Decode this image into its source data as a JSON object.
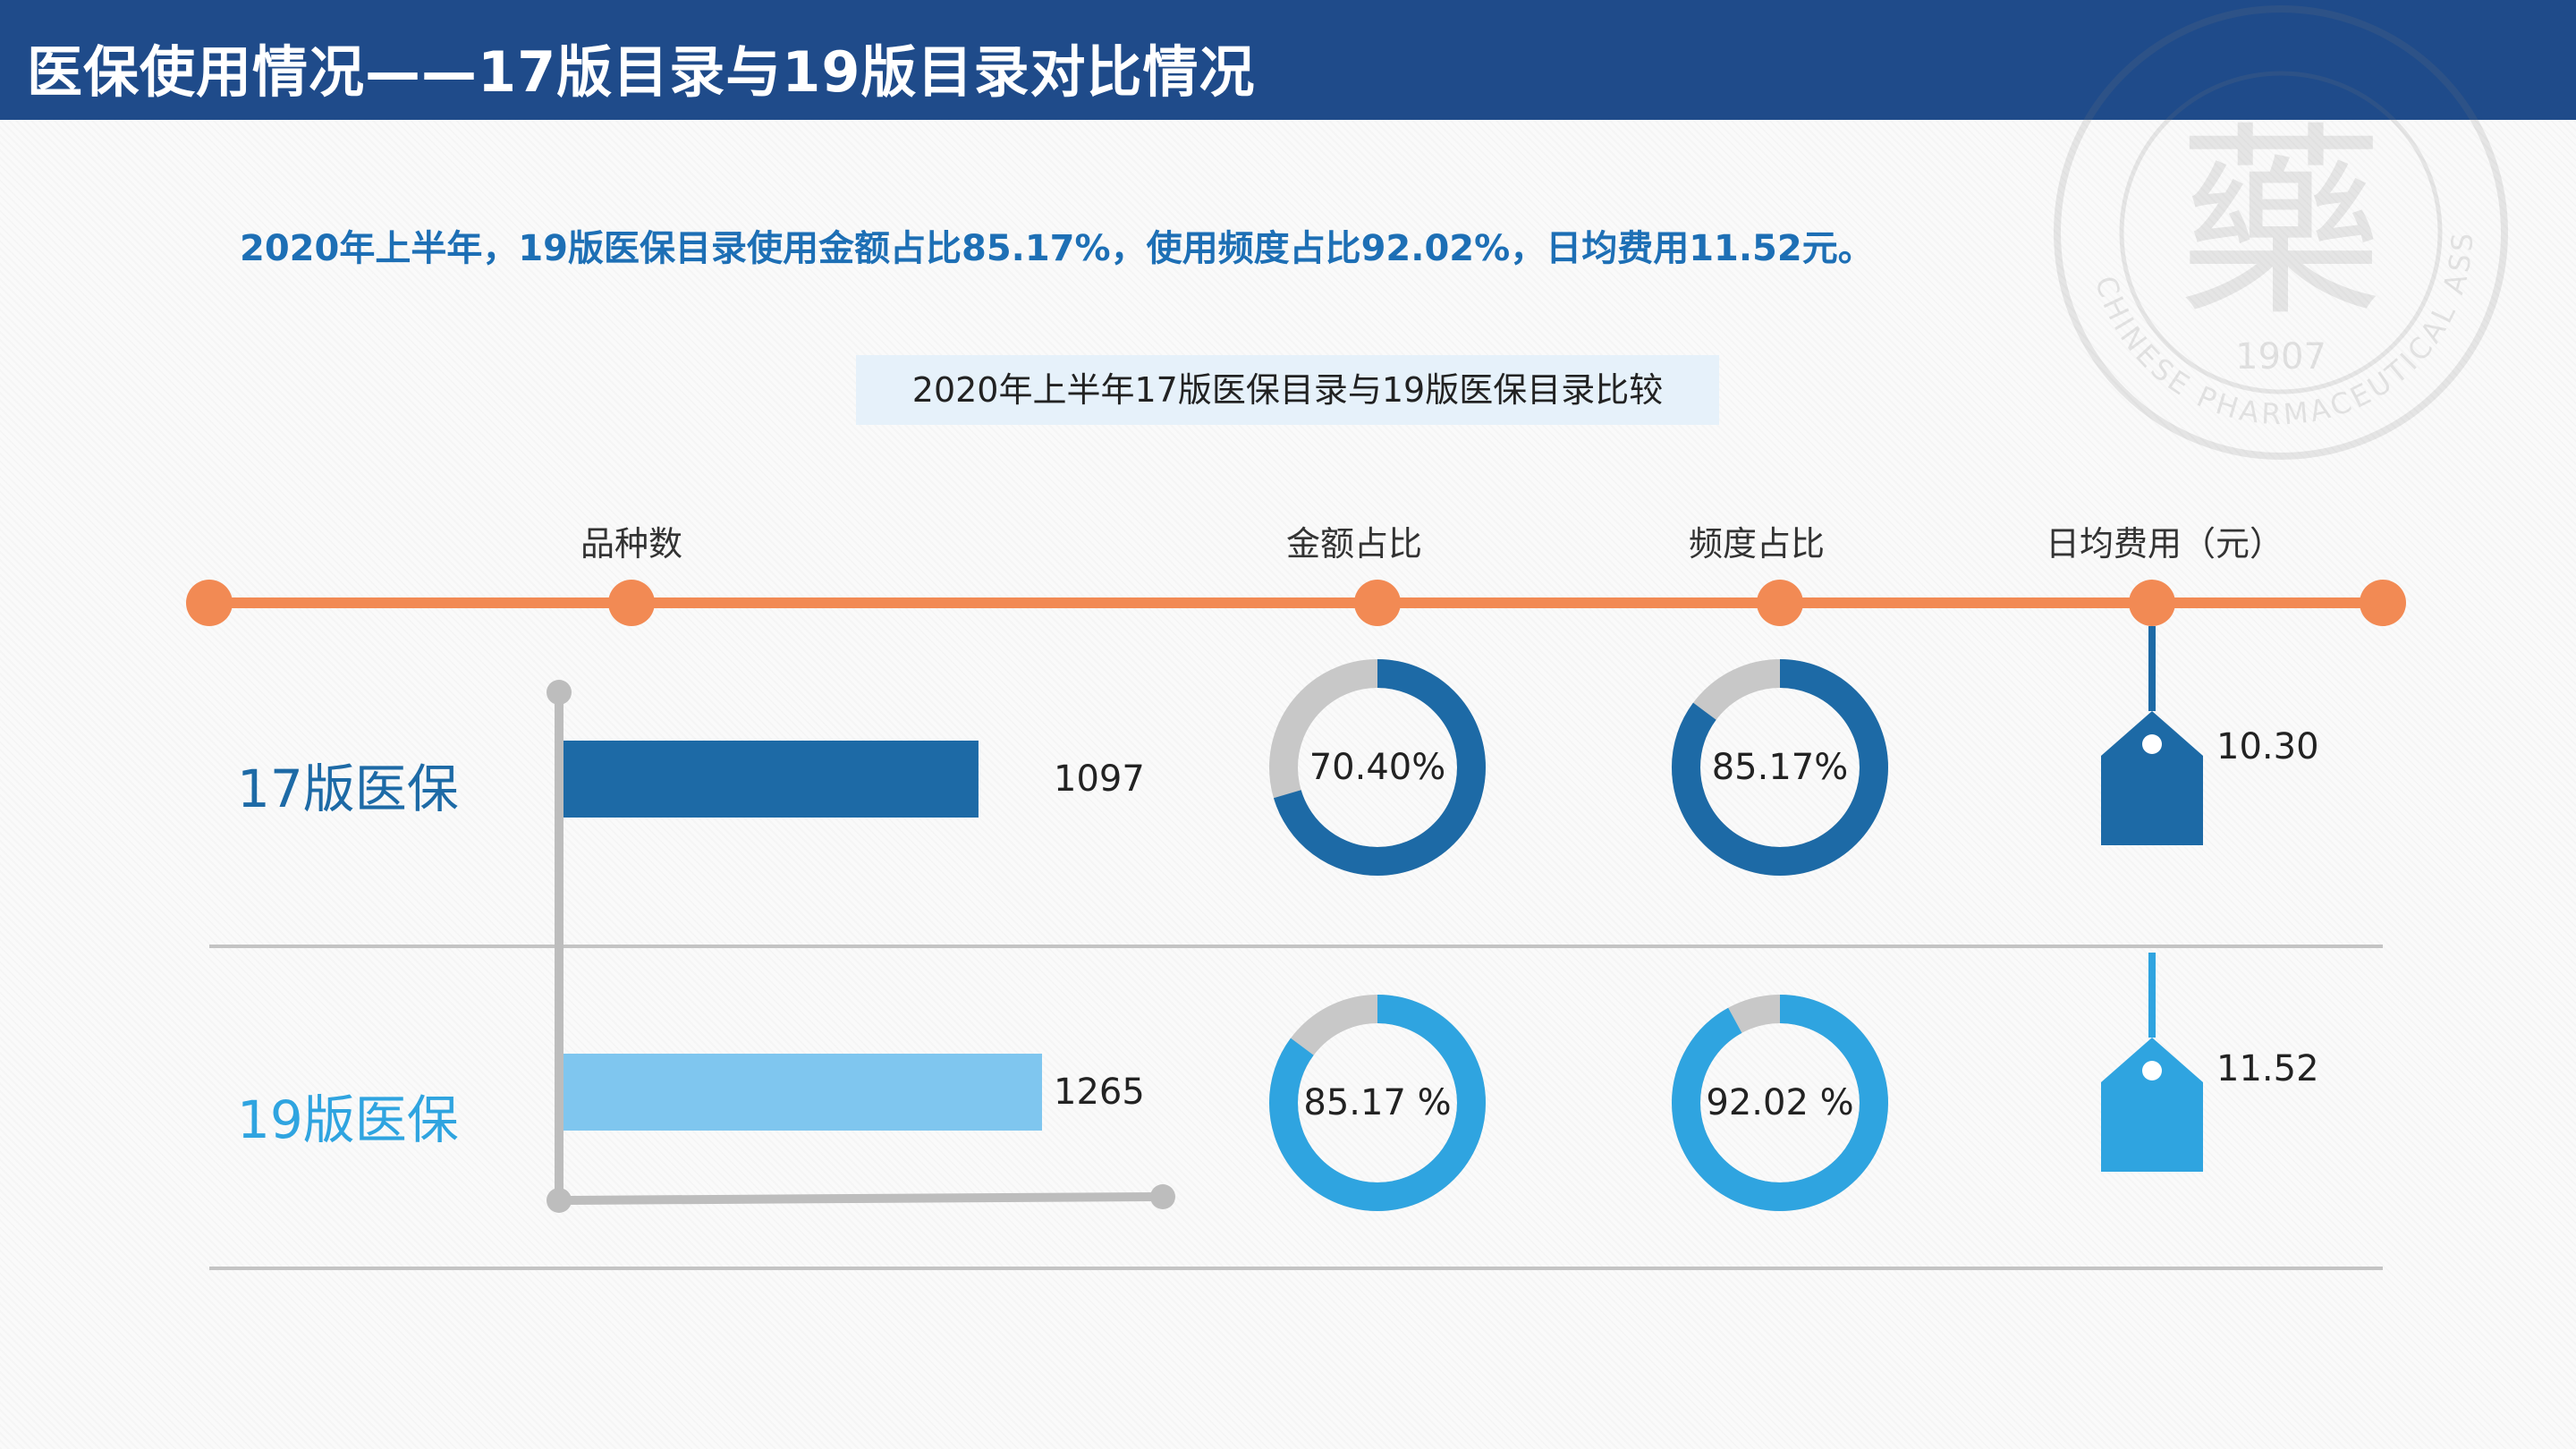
{
  "header": {
    "title": "医保使用情况——17版目录与19版目录对比情况"
  },
  "summary": "2020年上半年，19版医保目录使用金额占比85.17%，使用频度占比92.02%，日均费用11.52元。",
  "watermark": {
    "character": "藥",
    "year": "1907",
    "ring_text": "CHINESE PHARMACEUTICAL ASSOCIATION"
  },
  "colors": {
    "header": "#1f4b8a",
    "accent_orange": "#f28a54",
    "series_17": "#1d6aa6",
    "series_19": "#2fa4e0",
    "series_19_bar": "#7fc6ef",
    "remainder": "#c8c8c8"
  },
  "chart_data": {
    "type": "table",
    "title": "2020年上半年17版医保目录与19版医保目录比较",
    "columns": [
      "品种数",
      "金额占比",
      "频度占比",
      "日均费用（元）"
    ],
    "rows": [
      {
        "name": "17版医保",
        "variety_count": 1097,
        "amount_share": 70.4,
        "amount_label": "70.40%",
        "frequency_share": 85.17,
        "frequency_label": "85.17%",
        "daily_cost": 10.3,
        "daily_cost_label": "10.30"
      },
      {
        "name": "19版医保",
        "variety_count": 1265,
        "amount_share": 85.17,
        "amount_label": "85.17 %",
        "frequency_share": 92.02,
        "frequency_label": "92.02 %",
        "daily_cost": 11.52,
        "daily_cost_label": "11.52"
      }
    ],
    "bar_axis_max": 1265
  }
}
